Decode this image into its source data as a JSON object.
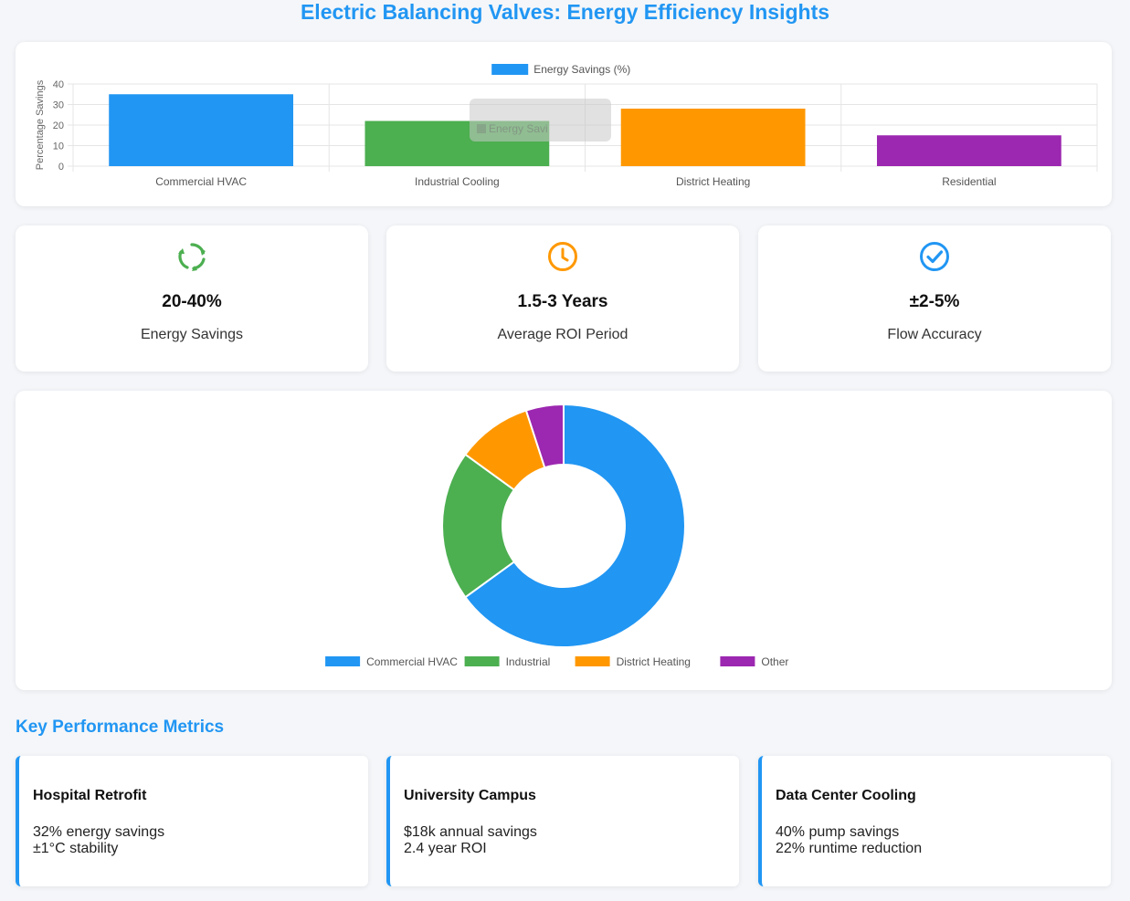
{
  "page": {
    "title": "Electric Balancing Valves: Energy Efficiency Insights",
    "section_title": "Key Performance Metrics"
  },
  "stats": [
    {
      "icon": "recycle-icon",
      "color": "#4caf50",
      "value": "20-40%",
      "label": "Energy Savings"
    },
    {
      "icon": "clock-icon",
      "color": "#ff9800",
      "value": "1.5-3 Years",
      "label": "Average ROI Period"
    },
    {
      "icon": "check-circle-icon",
      "color": "#2196f3",
      "value": "±2-5%",
      "label": "Flow Accuracy"
    }
  ],
  "metrics": [
    {
      "title": "Hospital Retrofit",
      "lines": [
        "32% energy savings",
        "±1°C stability"
      ]
    },
    {
      "title": "University Campus",
      "lines": [
        "$18k annual savings",
        "2.4 year ROI"
      ]
    },
    {
      "title": "Data Center Cooling",
      "lines": [
        "40% pump savings",
        "22% runtime reduction"
      ]
    }
  ],
  "tooltip": {
    "text": "Energy Savi"
  },
  "chart_data": [
    {
      "type": "bar",
      "categories": [
        "Commercial HVAC",
        "Industrial Cooling",
        "District Heating",
        "Residential"
      ],
      "series": [
        {
          "name": "Energy Savings (%)",
          "values": [
            35,
            22,
            28,
            15
          ]
        }
      ],
      "colors": [
        "#2196f3",
        "#4caf50",
        "#ff9800",
        "#9c27b0"
      ],
      "legend_color": "#2196f3",
      "ylabel": "Percentage Savings",
      "xlabel": "",
      "ylim": [
        0,
        40
      ],
      "yticks": [
        0,
        10,
        20,
        30,
        40
      ],
      "grid": true,
      "legend": "top-center"
    },
    {
      "type": "pie",
      "variant": "doughnut",
      "labels": [
        "Commercial HVAC",
        "Industrial",
        "District Heating",
        "Other"
      ],
      "values": [
        65,
        20,
        10,
        5
      ],
      "colors": [
        "#2196f3",
        "#4caf50",
        "#ff9800",
        "#9c27b0"
      ],
      "legend": "bottom-center"
    }
  ]
}
